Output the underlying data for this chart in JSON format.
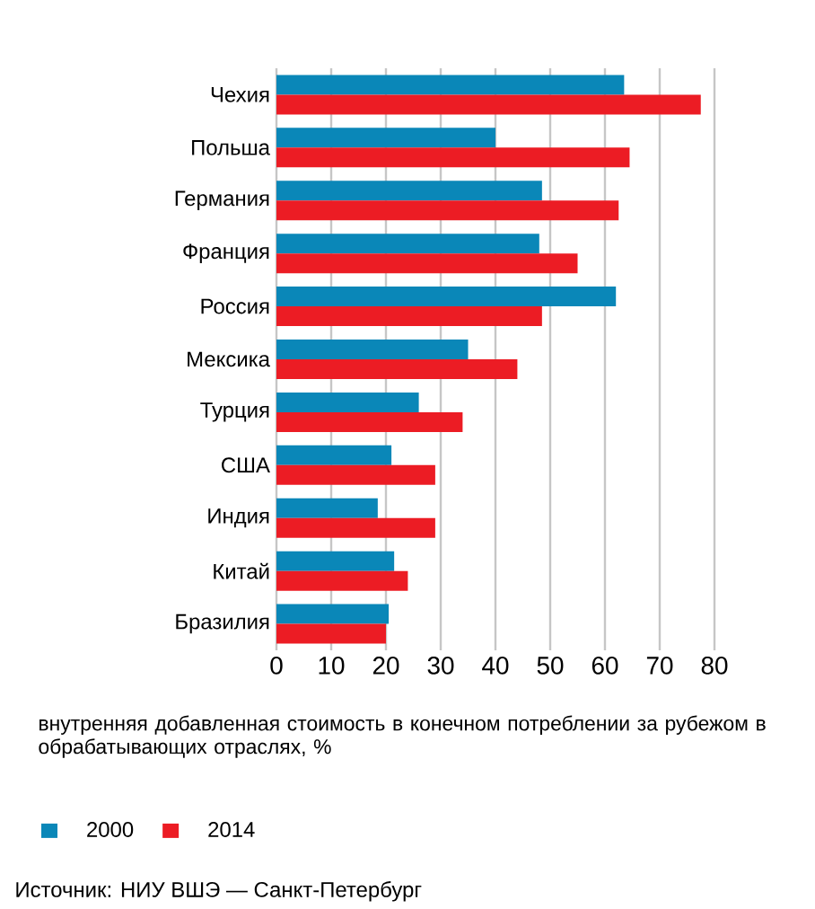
{
  "chart_data": {
    "type": "bar",
    "orientation": "horizontal",
    "categories": [
      "Чехия",
      "Польша",
      "Германия",
      "Франция",
      "Россия",
      "Мексика",
      "Турция",
      "США",
      "Индия",
      "Китай",
      "Бразилия"
    ],
    "series": [
      {
        "name": "2000",
        "color": "#0a87b8",
        "values": [
          63.5,
          40,
          48.5,
          48,
          62,
          35,
          26,
          21,
          18.5,
          21.5,
          20.5
        ]
      },
      {
        "name": "2014",
        "color": "#ec1c24",
        "values": [
          77.5,
          64.5,
          62.5,
          55,
          48.5,
          44,
          34,
          29,
          29,
          24,
          20
        ]
      }
    ],
    "xlim": [
      0,
      80
    ],
    "xticks": [
      0,
      10,
      20,
      30,
      40,
      50,
      60,
      70,
      80
    ],
    "xlabel": "внутренняя добавленная стоимость в конечном потреблении за рубежом в обрабатывающих отраслях, %",
    "grid": "x",
    "legend": "bottom left",
    "annotations": [
      "Источник: НИУ ВШЭ — Санкт-Петербург"
    ]
  }
}
